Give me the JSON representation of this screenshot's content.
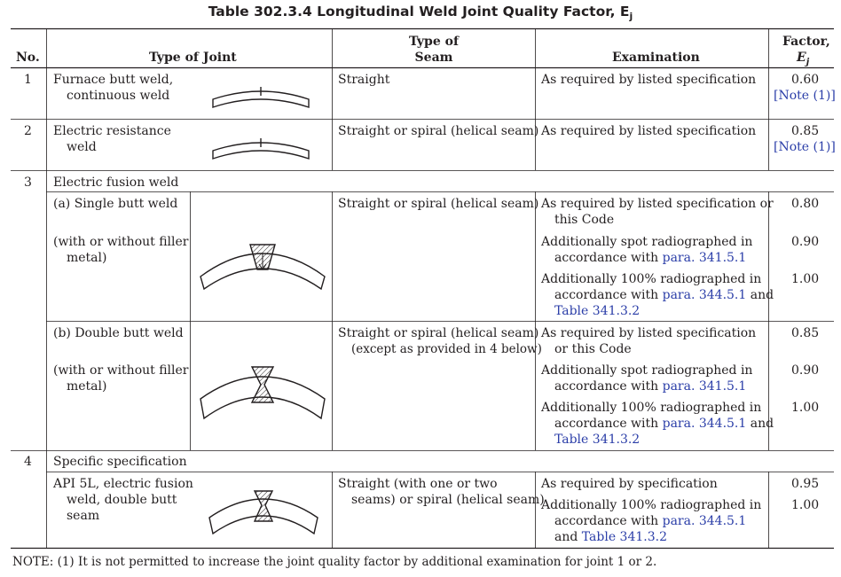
{
  "title": "Table 302.3.4 Longitudinal Weld Joint Quality Factor, E",
  "title_sub": "j",
  "headers": {
    "no": "No.",
    "type_of_joint": "Type of Joint",
    "type_of_seam_1": "Type of",
    "type_of_seam_2": "Seam",
    "examination": "Examination",
    "factor_1": "Factor,",
    "factor_2": "E",
    "factor_2_sub": "j"
  },
  "rows": {
    "r1": {
      "no": "1",
      "joint_1": "Furnace butt weld,",
      "joint_2": "continuous weld",
      "seam": "Straight",
      "exam": "As required by listed specification",
      "factor": "0.60",
      "note": "[Note (1)]"
    },
    "r2": {
      "no": "2",
      "joint_1": "Electric resistance",
      "joint_2": "weld",
      "seam": "Straight or spiral (helical seam)",
      "exam": "As required by listed specification",
      "factor": "0.85",
      "note": "[Note (1)]"
    },
    "r3": {
      "no": "3",
      "joint": "Electric fusion weld",
      "a_label": "(a) Single butt weld",
      "a_sub_1": "(with or without filler",
      "a_sub_2": "metal)",
      "a_seam": "Straight or spiral (helical seam)",
      "a_exam1_1": "As required by listed specification or",
      "a_exam1_2": "this Code",
      "a_f1": "0.80",
      "a_exam2_1": "Additionally spot radiographed in",
      "a_exam2_2": "accordance with ",
      "a_exam2_link": "para. 341.5.1",
      "a_f2": "0.90",
      "a_exam3_1": "Additionally 100% radiographed in",
      "a_exam3_2": "accordance with ",
      "a_exam3_link1": "para. 344.5.1",
      "a_exam3_and": " and",
      "a_exam3_link2": "Table 341.3.2",
      "a_f3": "1.00",
      "b_label": "(b) Double butt weld",
      "b_sub_1": "(with or without filler",
      "b_sub_2": "metal)",
      "b_seam_1": "Straight or spiral (helical seam)",
      "b_seam_2": "(except as provided in 4 below)",
      "b_exam1_1": "As required by listed specification",
      "b_exam1_2": "or this Code",
      "b_f1": "0.85",
      "b_exam2_1": "Additionally spot radiographed in",
      "b_exam2_2": "accordance with ",
      "b_exam2_link": "para. 341.5.1",
      "b_f2": "0.90",
      "b_exam3_1": "Additionally 100% radiographed in",
      "b_exam3_2": "accordance with ",
      "b_exam3_link1": "para. 344.5.1",
      "b_exam3_and": " and",
      "b_exam3_link2": "Table 341.3.2",
      "b_f3": "1.00"
    },
    "r4": {
      "no": "4",
      "joint": "Specific specification",
      "sub_1": "API 5L, electric fusion",
      "sub_2": "weld, double butt",
      "sub_3": "seam",
      "seam_1": "Straight (with one or two",
      "seam_2": "seams) or spiral (helical seam)",
      "exam1": "As required by specification",
      "f1": "0.95",
      "exam2_1": "Additionally 100% radiographed in",
      "exam2_2": "accordance with ",
      "exam2_link": "para. 344.5.1",
      "exam2_3": "and ",
      "exam2_link2": "Table 341.3.2",
      "f2": "1.00"
    }
  },
  "note": "NOTE: (1) It is not permitted to increase the joint quality factor by additional examination for joint 1 or 2.",
  "colors": {
    "link": "#2b3ea8",
    "text": "#231f20"
  }
}
